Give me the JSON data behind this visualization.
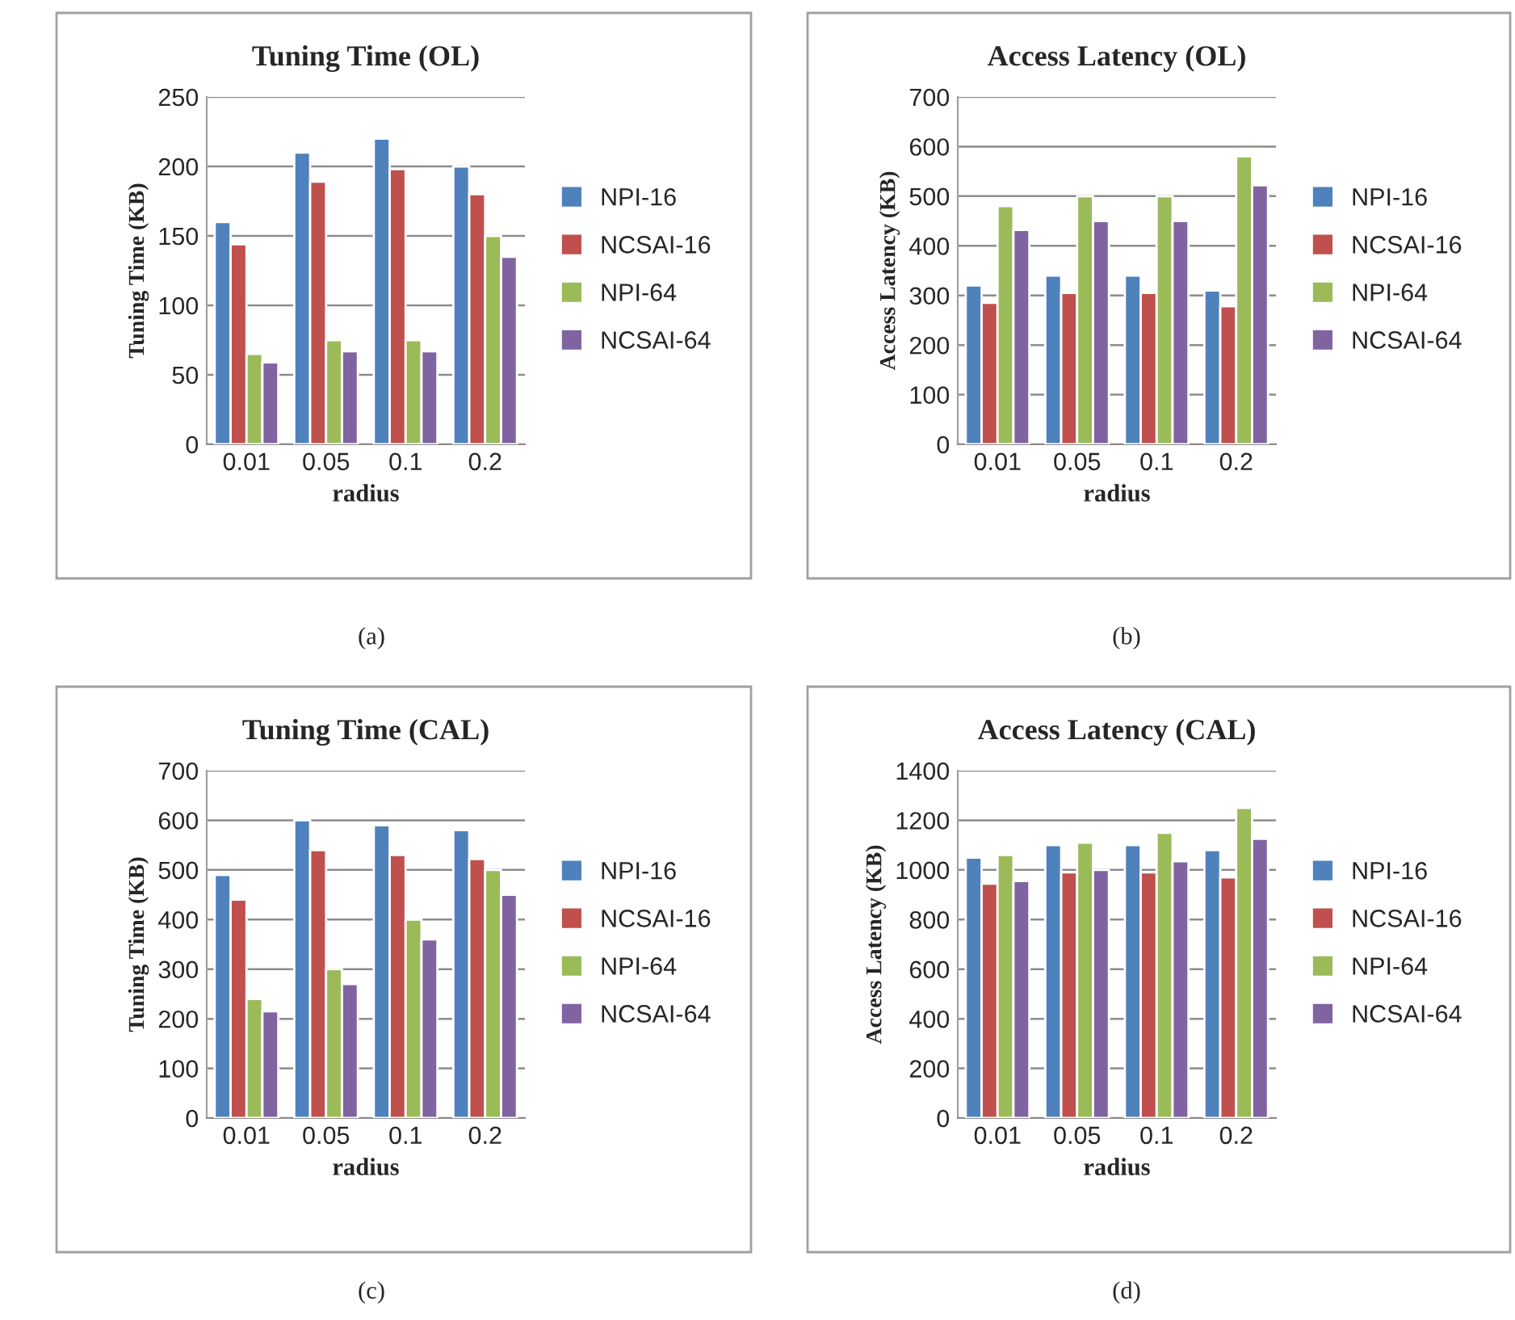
{
  "chart_data": [
    {
      "type": "bar",
      "title": "Tuning Time (OL)",
      "xlabel": "radius",
      "ylabel": "Tuning Time (KB)",
      "categories": [
        "0.01",
        "0.05",
        "0.1",
        "0.2"
      ],
      "series": [
        {
          "name": "NPI-16",
          "color": "#4f81bd",
          "values": [
            160,
            210,
            220,
            200
          ]
        },
        {
          "name": "NCSAI-16",
          "color": "#c0504d",
          "values": [
            144,
            189,
            198,
            180
          ]
        },
        {
          "name": "NPI-64",
          "color": "#9bbb59",
          "values": [
            65,
            75,
            75,
            150
          ]
        },
        {
          "name": "NCSAI-64",
          "color": "#8064a2",
          "values": [
            59,
            67,
            67,
            135
          ]
        }
      ],
      "ylim": [
        0,
        250
      ],
      "yticks": [
        0,
        50,
        100,
        150,
        200,
        250
      ],
      "grid": "y",
      "legend": "right",
      "annotations": [
        "(a)"
      ]
    },
    {
      "type": "bar",
      "title": "Access Latency (OL)",
      "xlabel": "radius",
      "ylabel": "Access Latency (KB)",
      "categories": [
        "0.01",
        "0.05",
        "0.1",
        "0.2"
      ],
      "series": [
        {
          "name": "NPI-16",
          "color": "#4f81bd",
          "values": [
            320,
            340,
            340,
            310
          ]
        },
        {
          "name": "NCSAI-16",
          "color": "#c0504d",
          "values": [
            285,
            305,
            305,
            278
          ]
        },
        {
          "name": "NPI-64",
          "color": "#9bbb59",
          "values": [
            480,
            500,
            500,
            580
          ]
        },
        {
          "name": "NCSAI-64",
          "color": "#8064a2",
          "values": [
            432,
            450,
            450,
            522
          ]
        }
      ],
      "ylim": [
        0,
        700
      ],
      "yticks": [
        0,
        100,
        200,
        300,
        400,
        500,
        600,
        700
      ],
      "grid": "y",
      "legend": "right",
      "annotations": [
        "(b)"
      ]
    },
    {
      "type": "bar",
      "title": "Tuning Time (CAL)",
      "xlabel": "radius",
      "ylabel": "Tuning Time (KB)",
      "categories": [
        "0.01",
        "0.05",
        "0.1",
        "0.2"
      ],
      "series": [
        {
          "name": "NPI-16",
          "color": "#4f81bd",
          "values": [
            490,
            600,
            590,
            580
          ]
        },
        {
          "name": "NCSAI-16",
          "color": "#c0504d",
          "values": [
            440,
            540,
            530,
            522
          ]
        },
        {
          "name": "NPI-64",
          "color": "#9bbb59",
          "values": [
            240,
            300,
            400,
            500
          ]
        },
        {
          "name": "NCSAI-64",
          "color": "#8064a2",
          "values": [
            215,
            270,
            360,
            450
          ]
        }
      ],
      "ylim": [
        0,
        700
      ],
      "yticks": [
        0,
        100,
        200,
        300,
        400,
        500,
        600,
        700
      ],
      "grid": "y",
      "legend": "right",
      "annotations": [
        "(c)"
      ]
    },
    {
      "type": "bar",
      "title": "Access Latency (CAL)",
      "xlabel": "radius",
      "ylabel": "Access Latency (KB)",
      "categories": [
        "0.01",
        "0.05",
        "0.1",
        "0.2"
      ],
      "series": [
        {
          "name": "NPI-16",
          "color": "#4f81bd",
          "values": [
            1050,
            1100,
            1100,
            1080
          ]
        },
        {
          "name": "NCSAI-16",
          "color": "#c0504d",
          "values": [
            945,
            990,
            990,
            970
          ]
        },
        {
          "name": "NPI-64",
          "color": "#9bbb59",
          "values": [
            1060,
            1110,
            1150,
            1250
          ]
        },
        {
          "name": "NCSAI-64",
          "color": "#8064a2",
          "values": [
            955,
            1000,
            1035,
            1125
          ]
        }
      ],
      "ylim": [
        0,
        1400
      ],
      "yticks": [
        0,
        200,
        400,
        600,
        800,
        1000,
        1200,
        1400
      ],
      "grid": "y",
      "legend": "right",
      "annotations": [
        "(d)"
      ]
    }
  ]
}
